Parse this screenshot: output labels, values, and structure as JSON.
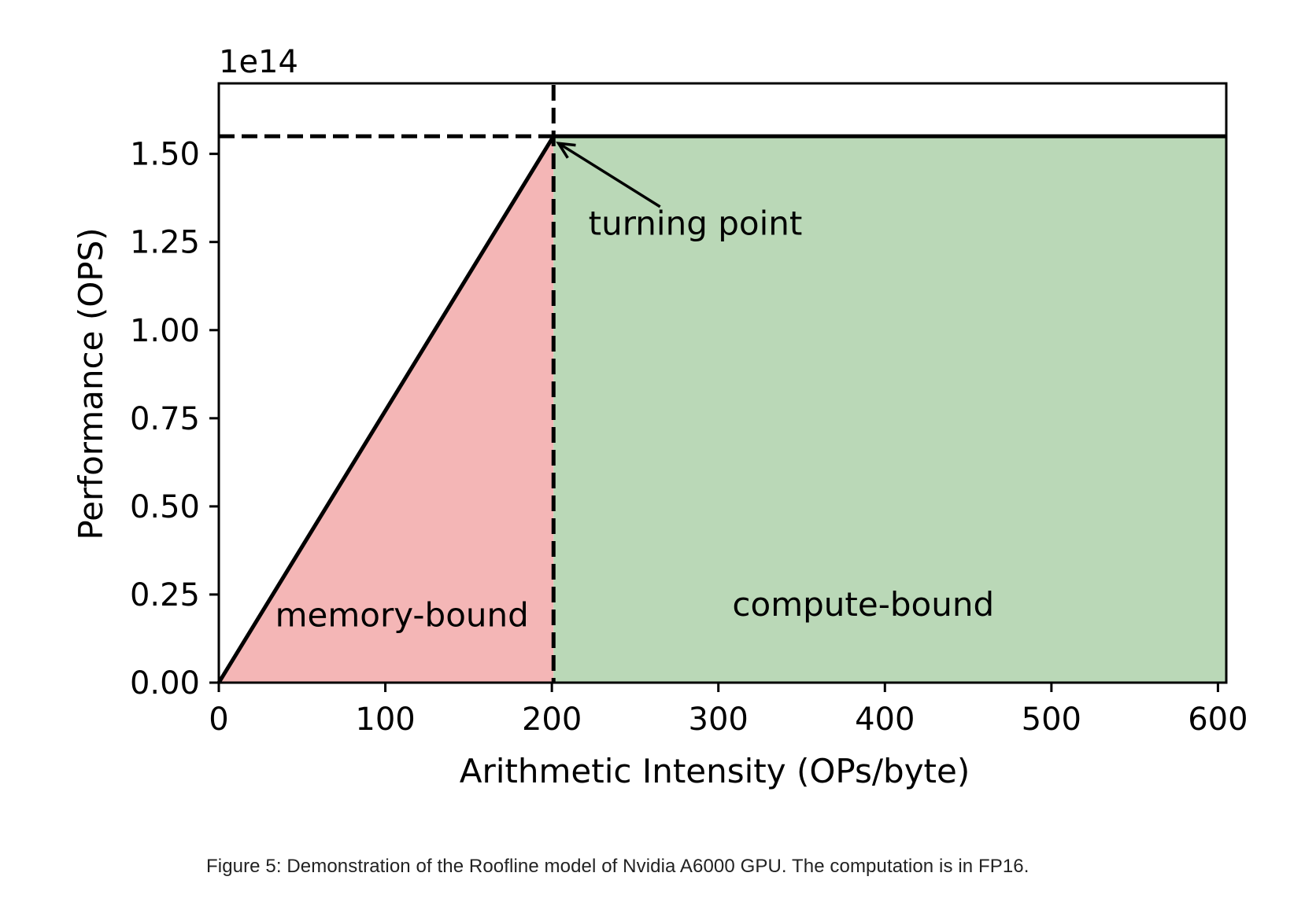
{
  "chart_data": {
    "type": "area",
    "xlabel": "Arithmetic Intensity (OPs/byte)",
    "ylabel": "Performance (OPS)",
    "y_scale_label": "1e14",
    "xlim": [
      0,
      605
    ],
    "ylim": [
      0,
      1.7
    ],
    "y_multiplier": 100000000000000.0,
    "x_ticks": [
      0,
      100,
      200,
      300,
      400,
      500,
      600
    ],
    "y_ticks": [
      0.0,
      0.25,
      0.5,
      0.75,
      1.0,
      1.25,
      1.5
    ],
    "y_tick_labels": [
      "0.00",
      "0.25",
      "0.50",
      "0.75",
      "1.00",
      "1.25",
      "1.50"
    ],
    "roofline": {
      "x": [
        0,
        201,
        605
      ],
      "y": [
        0,
        1.55,
        1.55
      ]
    },
    "turning_point": {
      "x": 201,
      "y": 1.55
    },
    "regions": [
      {
        "name": "memory-bound",
        "color": "#f4b6b6",
        "x_range": [
          0,
          201
        ]
      },
      {
        "name": "compute-bound",
        "color": "#bad8b7",
        "x_range": [
          201,
          605
        ]
      }
    ],
    "annotations": [
      {
        "text": "turning point",
        "x": 222,
        "y": 1.27,
        "arrow_to": [
          204,
          1.53
        ],
        "arrow_from": [
          265,
          1.35
        ]
      },
      {
        "text": "memory-bound",
        "x": 110,
        "y": 0.16
      },
      {
        "text": "compute-bound",
        "x": 387,
        "y": 0.19
      }
    ],
    "grid": false,
    "legend": "none"
  },
  "caption": "Figure 5: Demonstration of the Roofline model of Nvidia A6000 GPU. The computation is in FP16."
}
